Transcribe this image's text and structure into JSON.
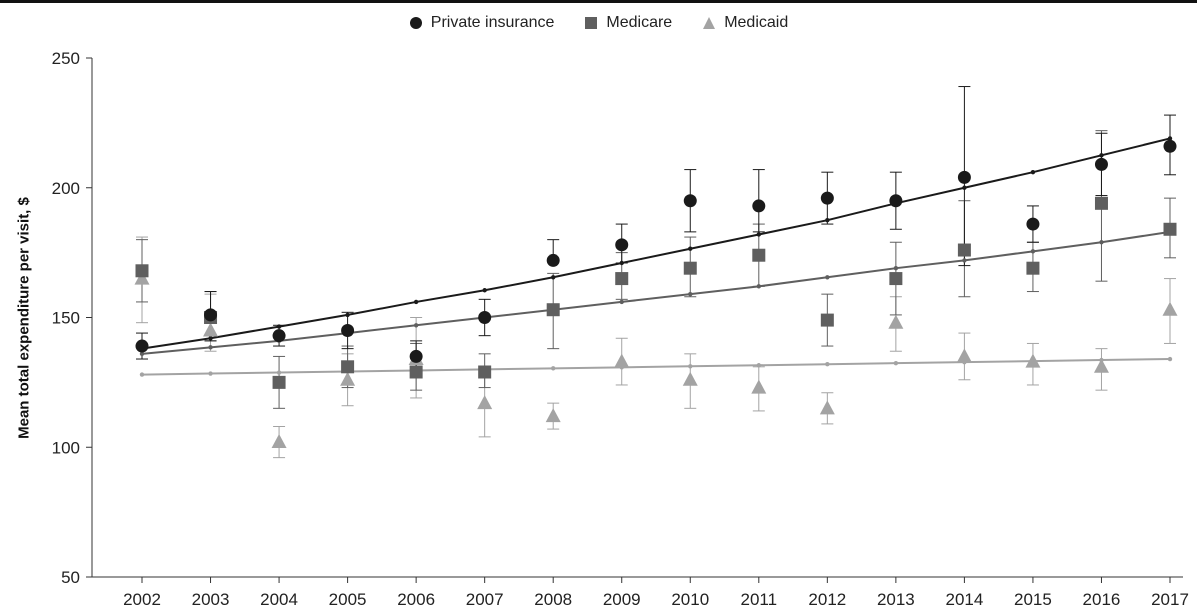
{
  "chart_data": {
    "type": "scatter",
    "title": "",
    "xlabel": "",
    "ylabel": "Mean total expenditure per visit, $",
    "ylim": [
      50,
      250
    ],
    "yticks": [
      50,
      100,
      150,
      200,
      250
    ],
    "categories": [
      "2002",
      "2003",
      "2004",
      "2005",
      "2006",
      "2007",
      "2008",
      "2009",
      "2010",
      "2011",
      "2012",
      "2013",
      "2014",
      "2015",
      "2016",
      "2017"
    ],
    "legend_position": "top-center",
    "series": [
      {
        "name": "Private insurance",
        "marker": "circle",
        "color": "#1a1a1a",
        "values": [
          139,
          151,
          143,
          145,
          135,
          150,
          172,
          178,
          195,
          193,
          196,
          195,
          204,
          186,
          209,
          216
        ],
        "error_low": [
          134,
          141,
          139,
          138,
          129,
          143,
          null,
          171,
          183,
          183,
          186,
          184,
          170,
          179,
          197,
          205
        ],
        "error_high": [
          144,
          160,
          147,
          152,
          141,
          157,
          180,
          186,
          207,
          207,
          206,
          206,
          239,
          193,
          221,
          228
        ],
        "trend": [
          138,
          142,
          146.5,
          151,
          156,
          160.5,
          165.5,
          171,
          176.5,
          182,
          187.5,
          194,
          200,
          206,
          212.5,
          219
        ]
      },
      {
        "name": "Medicare",
        "marker": "square",
        "color": "#5f5f5f",
        "values": [
          168,
          150,
          125,
          131,
          129,
          129,
          153,
          165,
          169,
          174,
          149,
          165,
          176,
          169,
          194,
          184
        ],
        "error_low": [
          156,
          141,
          115,
          123,
          122,
          123,
          138,
          157,
          158,
          162,
          139,
          151,
          158,
          160,
          164,
          173
        ],
        "error_high": [
          180,
          160,
          135,
          139,
          140,
          136,
          167,
          175,
          181,
          186,
          159,
          179,
          195,
          179,
          222,
          196
        ],
        "trend": [
          136,
          138.5,
          141,
          144,
          147,
          150,
          153,
          156,
          159,
          162,
          165.5,
          169,
          172,
          175.5,
          179,
          183
        ]
      },
      {
        "name": "Medicaid",
        "marker": "triangle",
        "color": "#a3a3a3",
        "values": [
          165,
          145,
          102,
          126,
          134,
          117,
          112,
          133,
          126,
          123,
          115,
          148,
          135,
          133,
          131,
          153
        ],
        "error_low": [
          148,
          137,
          96,
          116,
          119,
          104,
          107,
          124,
          115,
          114,
          109,
          137,
          126,
          124,
          122,
          140
        ],
        "error_high": [
          181,
          159,
          108,
          136,
          150,
          130,
          117,
          142,
          136,
          131,
          121,
          158,
          144,
          140,
          138,
          165
        ],
        "trend": [
          128,
          128.4,
          128.8,
          129.2,
          129.6,
          130,
          130.4,
          130.8,
          131.2,
          131.6,
          132,
          132.4,
          132.8,
          133.2,
          133.6,
          134
        ]
      }
    ]
  }
}
